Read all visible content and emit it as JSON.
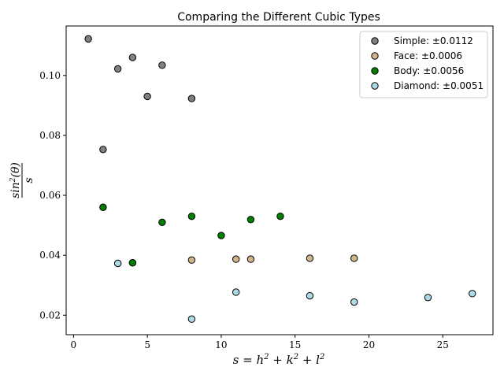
{
  "chart_data": {
    "type": "scatter",
    "title": "Comparing the Different Cubic Types",
    "xlabel": "s = h^2 + k^2 + l^2",
    "ylabel": "sin^2(θ) / s",
    "xlim": [
      -0.5,
      28.4
    ],
    "ylim": [
      0.0135,
      0.1165
    ],
    "xticks": [
      0,
      5,
      10,
      15,
      20,
      25
    ],
    "yticks": [
      0.02,
      0.04,
      0.06,
      0.08,
      0.1
    ],
    "ytick_labels": [
      "0.02",
      "0.04",
      "0.06",
      "0.08",
      "0.10"
    ],
    "grid": false,
    "legend_position": "top-right",
    "series": [
      {
        "name": "Simple: ±0.0112",
        "color": "#808080",
        "points": [
          [
            1,
            0.1122
          ],
          [
            2,
            0.0753
          ],
          [
            3,
            0.1022
          ],
          [
            4,
            0.106
          ],
          [
            5,
            0.093
          ],
          [
            6,
            0.1034
          ],
          [
            8,
            0.0923
          ]
        ]
      },
      {
        "name": "Face: ±0.0006",
        "color": "#d2b48c",
        "points": [
          [
            3,
            0.0373
          ],
          [
            4,
            0.0375
          ],
          [
            8,
            0.0384
          ],
          [
            11,
            0.0387
          ],
          [
            12,
            0.0387
          ],
          [
            16,
            0.039
          ],
          [
            19,
            0.039
          ]
        ]
      },
      {
        "name": "Body: ±0.0056",
        "color": "#008000",
        "points": [
          [
            2,
            0.056
          ],
          [
            4,
            0.0375
          ],
          [
            6,
            0.051
          ],
          [
            8,
            0.053
          ],
          [
            10,
            0.0466
          ],
          [
            12,
            0.0519
          ],
          [
            14,
            0.053
          ]
        ]
      },
      {
        "name": "Diamond: ±0.0051",
        "color": "#add8e6",
        "points": [
          [
            3,
            0.0373
          ],
          [
            8,
            0.0187
          ],
          [
            11,
            0.0277
          ],
          [
            16,
            0.0265
          ],
          [
            19,
            0.0244
          ],
          [
            24,
            0.0259
          ],
          [
            27,
            0.0272
          ]
        ]
      }
    ]
  }
}
